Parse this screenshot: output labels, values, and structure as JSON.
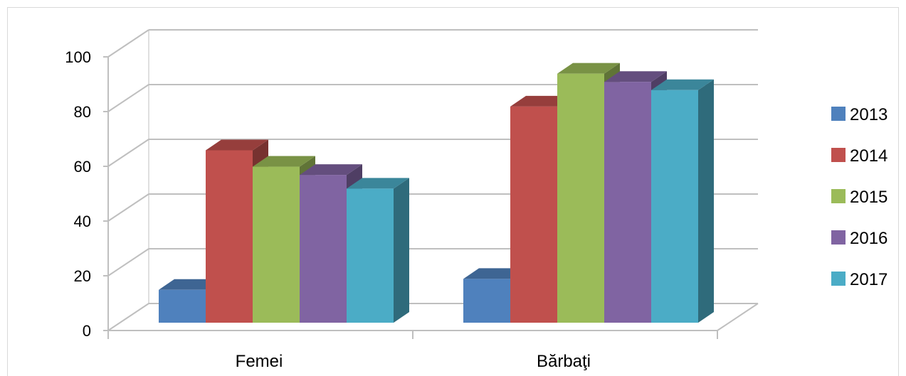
{
  "chart_data": {
    "type": "bar",
    "style": "3d-clustered-column",
    "categories": [
      "Femei",
      "Bărbaţi"
    ],
    "series": [
      {
        "name": "2013",
        "color": "#4f81bd",
        "values": [
          12,
          16
        ]
      },
      {
        "name": "2014",
        "color": "#c0504d",
        "values": [
          63,
          79
        ]
      },
      {
        "name": "2015",
        "color": "#9bbb59",
        "values": [
          57,
          91
        ]
      },
      {
        "name": "2016",
        "color": "#8064a2",
        "values": [
          54,
          88
        ]
      },
      {
        "name": "2017",
        "color": "#4bacc6",
        "values": [
          49,
          85
        ]
      }
    ],
    "y_ticks": [
      "0",
      "20",
      "40",
      "60",
      "80",
      "100"
    ],
    "ylim": [
      0,
      100
    ],
    "grid": true,
    "legend_position": "right"
  }
}
